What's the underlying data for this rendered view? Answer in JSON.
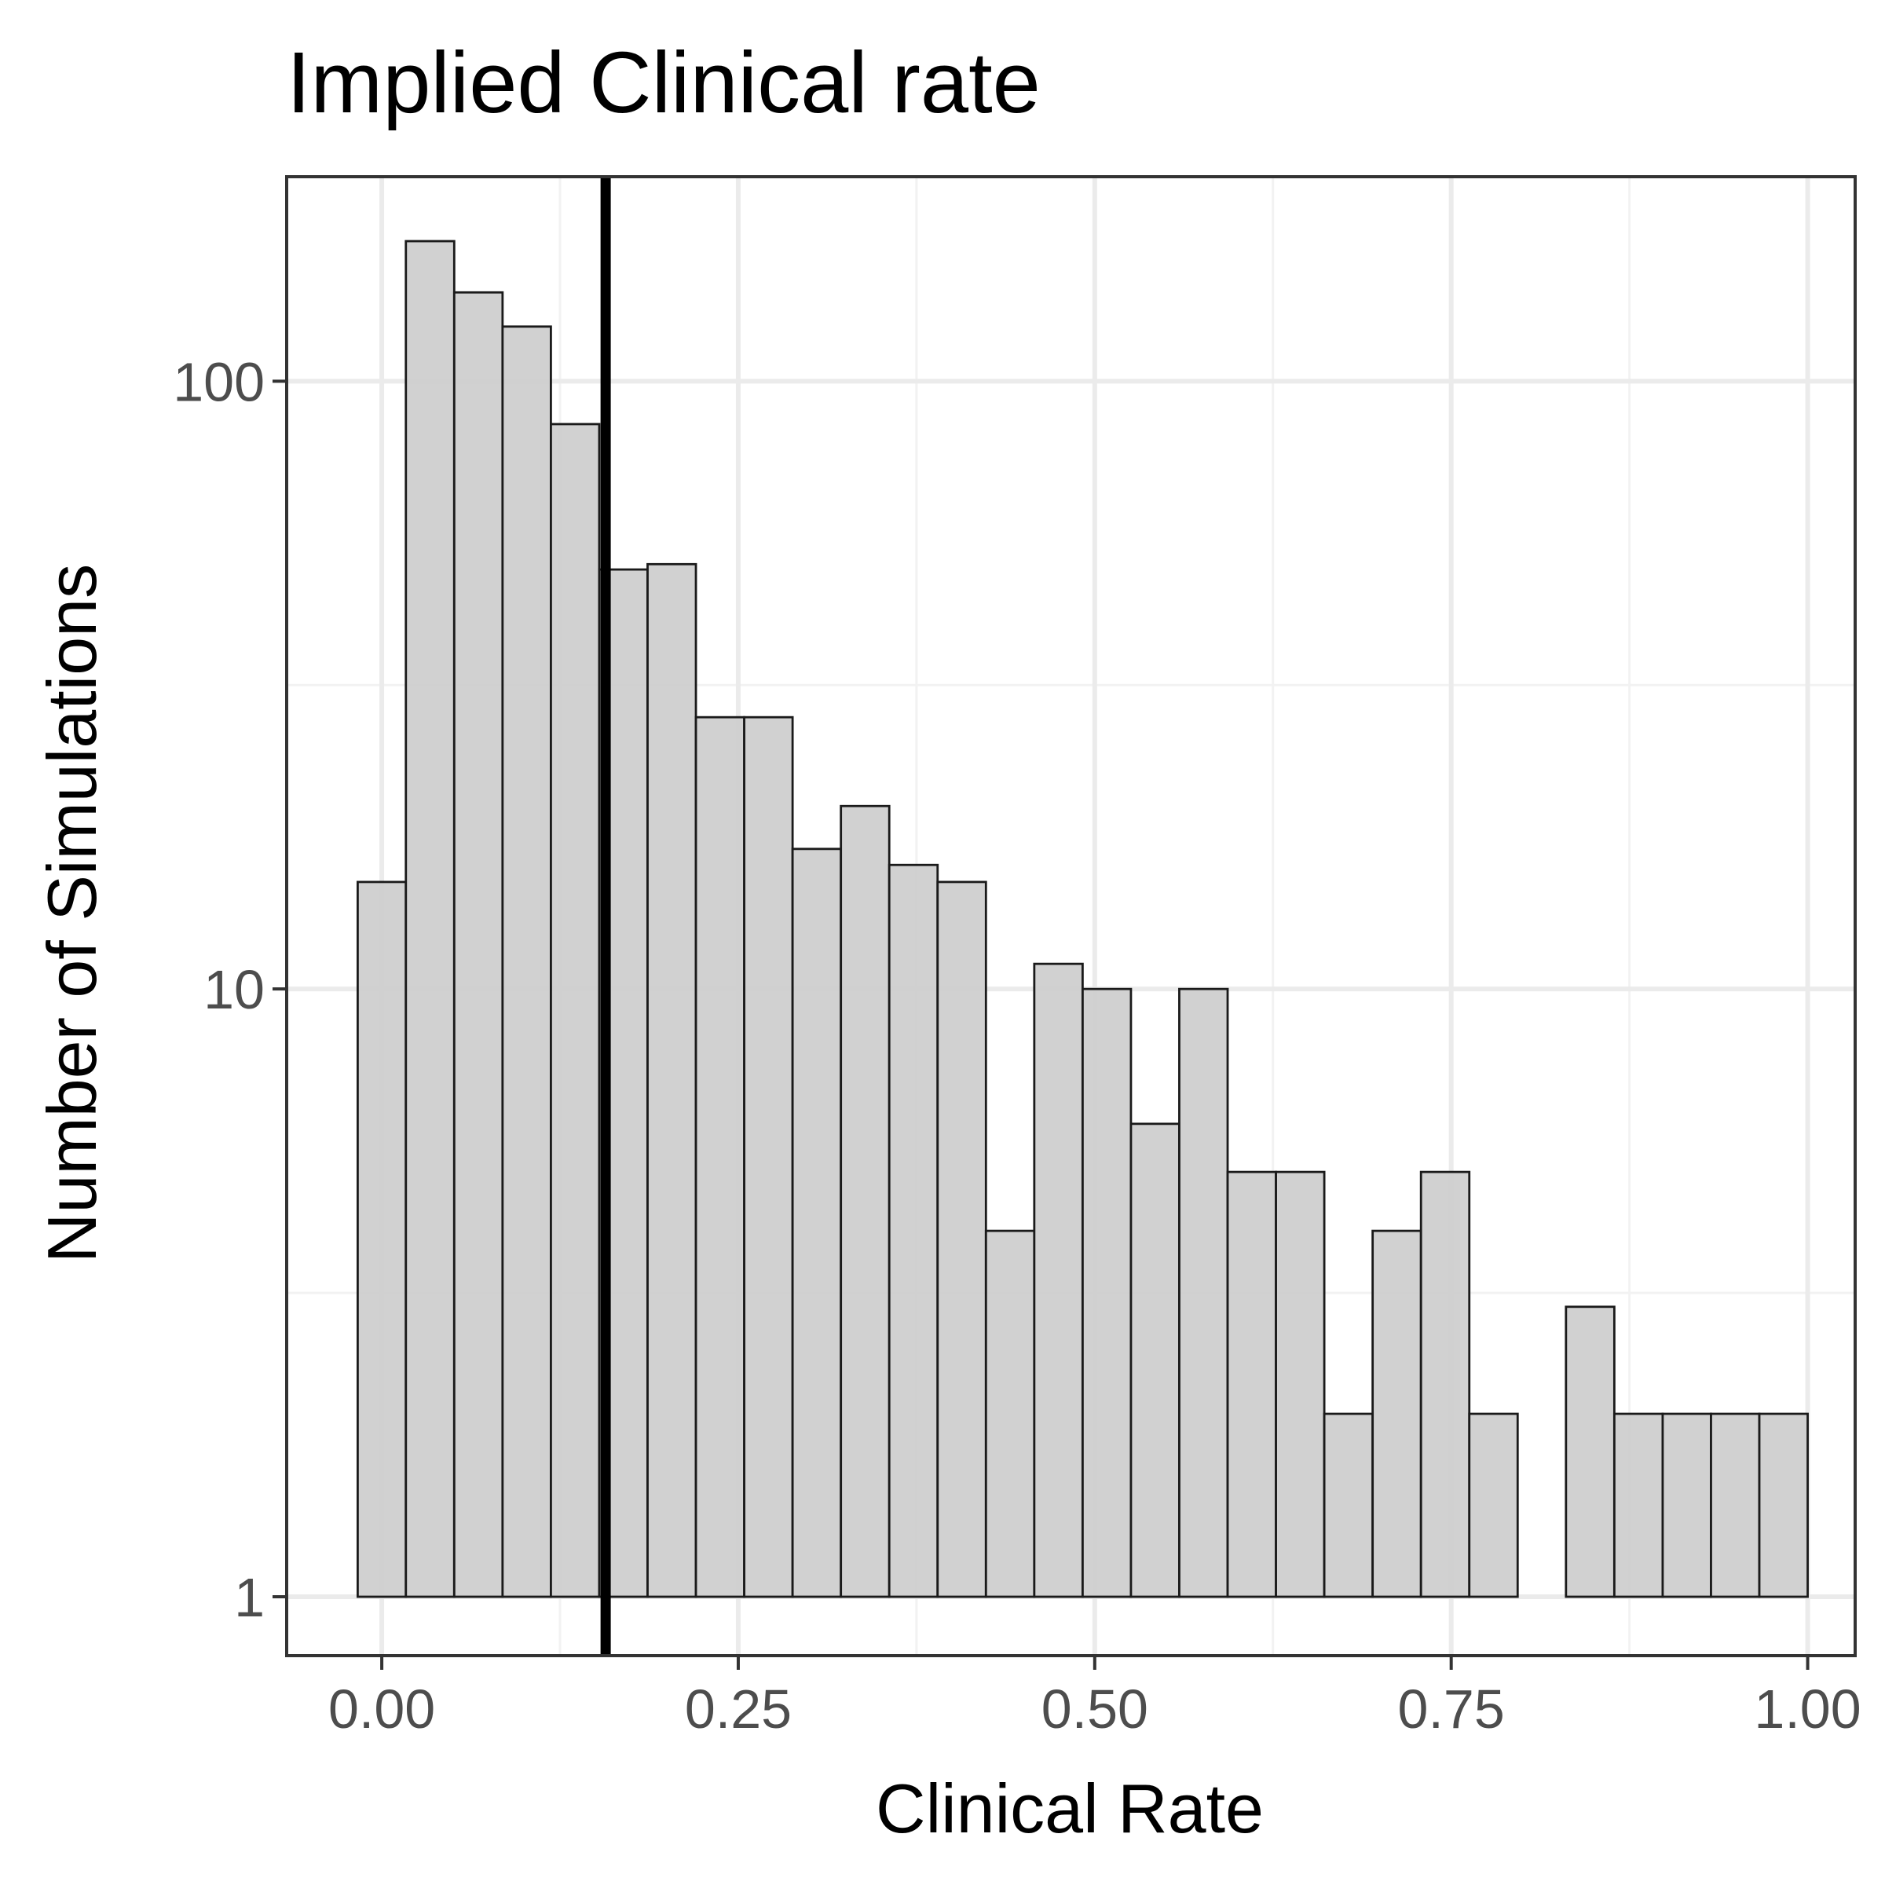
{
  "chart_data": {
    "type": "bar",
    "title": "Implied Clinical rate",
    "xlabel": "Clinical Rate",
    "ylabel": "Number of Simulations",
    "x_scale": "linear",
    "y_scale": "log10",
    "xlim": [
      -0.0667,
      1.0333
    ],
    "ylim": [
      0.8,
      217
    ],
    "x_ticks": [
      0.0,
      0.25,
      0.5,
      0.75,
      1.0
    ],
    "x_tick_labels": [
      "0.00",
      "0.25",
      "0.50",
      "0.75",
      "1.00"
    ],
    "y_ticks": [
      1,
      10,
      100
    ],
    "y_tick_labels": [
      "1",
      "10",
      "100"
    ],
    "grid": true,
    "bin_width": 0.0339,
    "bins": [
      {
        "x_min": -0.0169,
        "x_max": 0.0169,
        "count": 15
      },
      {
        "x_min": 0.0169,
        "x_max": 0.0508,
        "count": 170
      },
      {
        "x_min": 0.0508,
        "x_max": 0.0847,
        "count": 140
      },
      {
        "x_min": 0.0847,
        "x_max": 0.1186,
        "count": 123
      },
      {
        "x_min": 0.1186,
        "x_max": 0.1525,
        "count": 85
      },
      {
        "x_min": 0.1525,
        "x_max": 0.1864,
        "count": 49
      },
      {
        "x_min": 0.1864,
        "x_max": 0.2203,
        "count": 50
      },
      {
        "x_min": 0.2203,
        "x_max": 0.2542,
        "count": 28
      },
      {
        "x_min": 0.2542,
        "x_max": 0.2881,
        "count": 28
      },
      {
        "x_min": 0.2881,
        "x_max": 0.322,
        "count": 17
      },
      {
        "x_min": 0.322,
        "x_max": 0.3559,
        "count": 20
      },
      {
        "x_min": 0.3559,
        "x_max": 0.3898,
        "count": 16
      },
      {
        "x_min": 0.3898,
        "x_max": 0.4237,
        "count": 15
      },
      {
        "x_min": 0.4237,
        "x_max": 0.4576,
        "count": 4
      },
      {
        "x_min": 0.4576,
        "x_max": 0.4915,
        "count": 11
      },
      {
        "x_min": 0.4915,
        "x_max": 0.5254,
        "count": 10
      },
      {
        "x_min": 0.5254,
        "x_max": 0.5593,
        "count": 6
      },
      {
        "x_min": 0.5593,
        "x_max": 0.5932,
        "count": 10
      },
      {
        "x_min": 0.5932,
        "x_max": 0.6271,
        "count": 5
      },
      {
        "x_min": 0.6271,
        "x_max": 0.661,
        "count": 5
      },
      {
        "x_min": 0.661,
        "x_max": 0.6949,
        "count": 2
      },
      {
        "x_min": 0.6949,
        "x_max": 0.7288,
        "count": 4
      },
      {
        "x_min": 0.7288,
        "x_max": 0.7627,
        "count": 5
      },
      {
        "x_min": 0.7627,
        "x_max": 0.7966,
        "count": 2
      },
      {
        "x_min": 0.7966,
        "x_max": 0.8305,
        "count": 1
      },
      {
        "x_min": 0.8305,
        "x_max": 0.8644,
        "count": 3
      },
      {
        "x_min": 0.8644,
        "x_max": 0.8983,
        "count": 2
      },
      {
        "x_min": 0.8983,
        "x_max": 0.9322,
        "count": 2
      },
      {
        "x_min": 0.9322,
        "x_max": 0.9661,
        "count": 2
      },
      {
        "x_min": 0.9661,
        "x_max": 1.0,
        "count": 2
      }
    ],
    "reference_line": {
      "x": 0.157,
      "color": "#000000"
    },
    "colors": {
      "bar_fill": "#cdcdcd",
      "bar_stroke": "#1a1a1a",
      "grid_major": "#ebebeb",
      "grid_minor": "#f2f2f2",
      "panel_border": "#333333",
      "tick_label": "#4d4d4d"
    }
  }
}
